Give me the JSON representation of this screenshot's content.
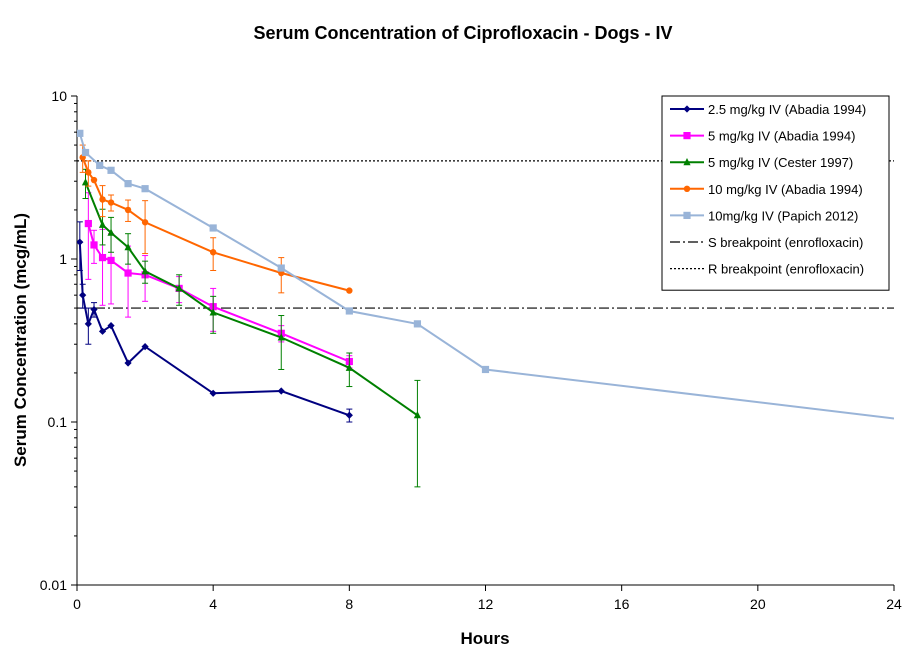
{
  "chart_data": {
    "type": "line",
    "title": "Serum Concentration of Ciprofloxacin - Dogs - IV",
    "xlabel": "Hours",
    "ylabel": "Serum Concentration (mcg/mL)",
    "xlim": [
      0,
      24
    ],
    "ylim": [
      0.01,
      10
    ],
    "y_scale": "log",
    "x_ticks": [
      0,
      4,
      8,
      12,
      16,
      20,
      24
    ],
    "x_tick_labels": [
      "0",
      "4",
      "8",
      "12",
      "16",
      "20",
      "24"
    ],
    "y_ticks": [
      0.01,
      0.1,
      1,
      10
    ],
    "y_tick_labels": [
      "0.01",
      "0.1",
      "1",
      "10"
    ],
    "grid": false,
    "legend_position": "top-right",
    "series": [
      {
        "name": "2.5 mg/kg IV (Abadia 1994)",
        "color": "#000080",
        "marker": "diamond",
        "x": [
          0.083,
          0.167,
          0.333,
          0.5,
          0.75,
          1,
          1.5,
          2,
          4,
          6,
          8
        ],
        "y": [
          1.27,
          0.6,
          0.4,
          0.49,
          0.36,
          0.39,
          0.23,
          0.29,
          0.15,
          0.155,
          0.11
        ],
        "error": [
          0.42,
          0.1,
          0.1,
          0.05,
          0,
          0,
          0,
          0,
          0,
          0,
          0.01
        ]
      },
      {
        "name": "5 mg/kg IV (Abadia 1994)",
        "color": "#FF00FF",
        "marker": "square",
        "x": [
          0.333,
          0.5,
          0.75,
          1,
          1.5,
          2,
          3,
          4,
          6,
          8
        ],
        "y": [
          1.65,
          1.22,
          1.02,
          0.98,
          0.82,
          0.8,
          0.66,
          0.51,
          0.35,
          0.235
        ],
        "error": [
          0.9,
          0.28,
          0.5,
          0.45,
          0.38,
          0.25,
          0.12,
          0.15,
          0.04,
          0.02
        ]
      },
      {
        "name": "5 mg/kg IV (Cester 1997)",
        "color": "#008000",
        "marker": "triangle",
        "x": [
          0.25,
          0.75,
          1,
          1.5,
          2,
          3,
          4,
          6,
          8,
          10
        ],
        "y": [
          2.95,
          1.62,
          1.45,
          1.18,
          0.84,
          0.66,
          0.47,
          0.33,
          0.215,
          0.11
        ],
        "error": [
          0.6,
          0.4,
          0.35,
          0.25,
          0.13,
          0.14,
          0.12,
          0.12,
          0.05,
          0.07
        ]
      },
      {
        "name": "10 mg/kg IV (Abadia 1994)",
        "color": "#FF6600",
        "marker": "circle",
        "x": [
          0.167,
          0.333,
          0.5,
          0.75,
          1,
          1.5,
          2,
          4,
          6,
          8
        ],
        "y": [
          4.2,
          3.4,
          3.05,
          2.32,
          2.22,
          2.0,
          1.68,
          1.1,
          0.82,
          0.64
        ],
        "error": [
          0.8,
          0.6,
          0,
          0.5,
          0.25,
          0.3,
          0.6,
          0.25,
          0.2,
          0
        ]
      },
      {
        "name": "10mg/kg IV (Papich 2012)",
        "color": "#99B4D8",
        "marker": "square",
        "x": [
          0.083,
          0.25,
          0.667,
          1,
          1.5,
          2,
          4,
          6,
          8,
          10,
          12,
          24
        ],
        "y": [
          5.9,
          4.5,
          3.75,
          3.5,
          2.9,
          2.7,
          1.55,
          0.88,
          0.48,
          0.4,
          0.21,
          0.105
        ],
        "error": [
          0,
          0,
          0,
          0,
          0,
          0,
          0,
          0,
          0,
          0,
          0,
          0
        ]
      }
    ],
    "reference_lines": [
      {
        "name": "S breakpoint (enrofloxacin)",
        "y": 0.5,
        "style": "dash-dot",
        "color": "#000000"
      },
      {
        "name": "R breakpoint (enrofloxacin)",
        "y": 4,
        "style": "dotted",
        "color": "#000000"
      }
    ]
  }
}
